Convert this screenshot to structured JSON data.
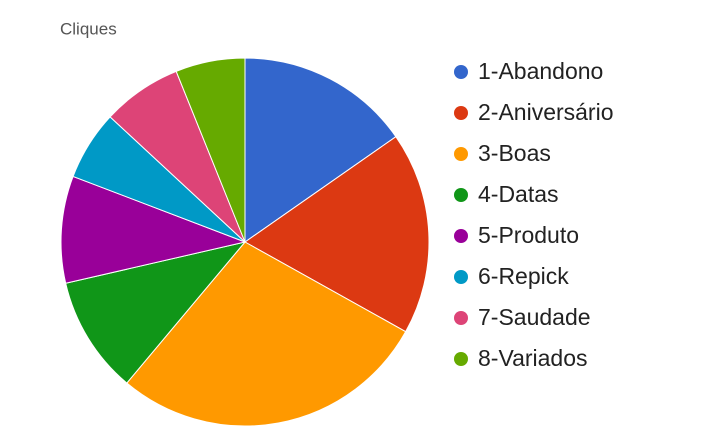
{
  "chart_data": {
    "type": "pie",
    "title": "Cliques",
    "categories": [
      "1-Abandono",
      "2-Aniversário",
      "3-Boas",
      "4-Datas",
      "5-Produto",
      "6-Repick",
      "7-Saudade",
      "8-Variados"
    ],
    "values": [
      15.3,
      17.8,
      28,
      10.3,
      9.4,
      6.1,
      7,
      6.1
    ],
    "colors": [
      "#3366cc",
      "#dc3912",
      "#ff9900",
      "#109618",
      "#990099",
      "#0099c6",
      "#dd4477",
      "#66aa00"
    ],
    "legend": "right"
  }
}
